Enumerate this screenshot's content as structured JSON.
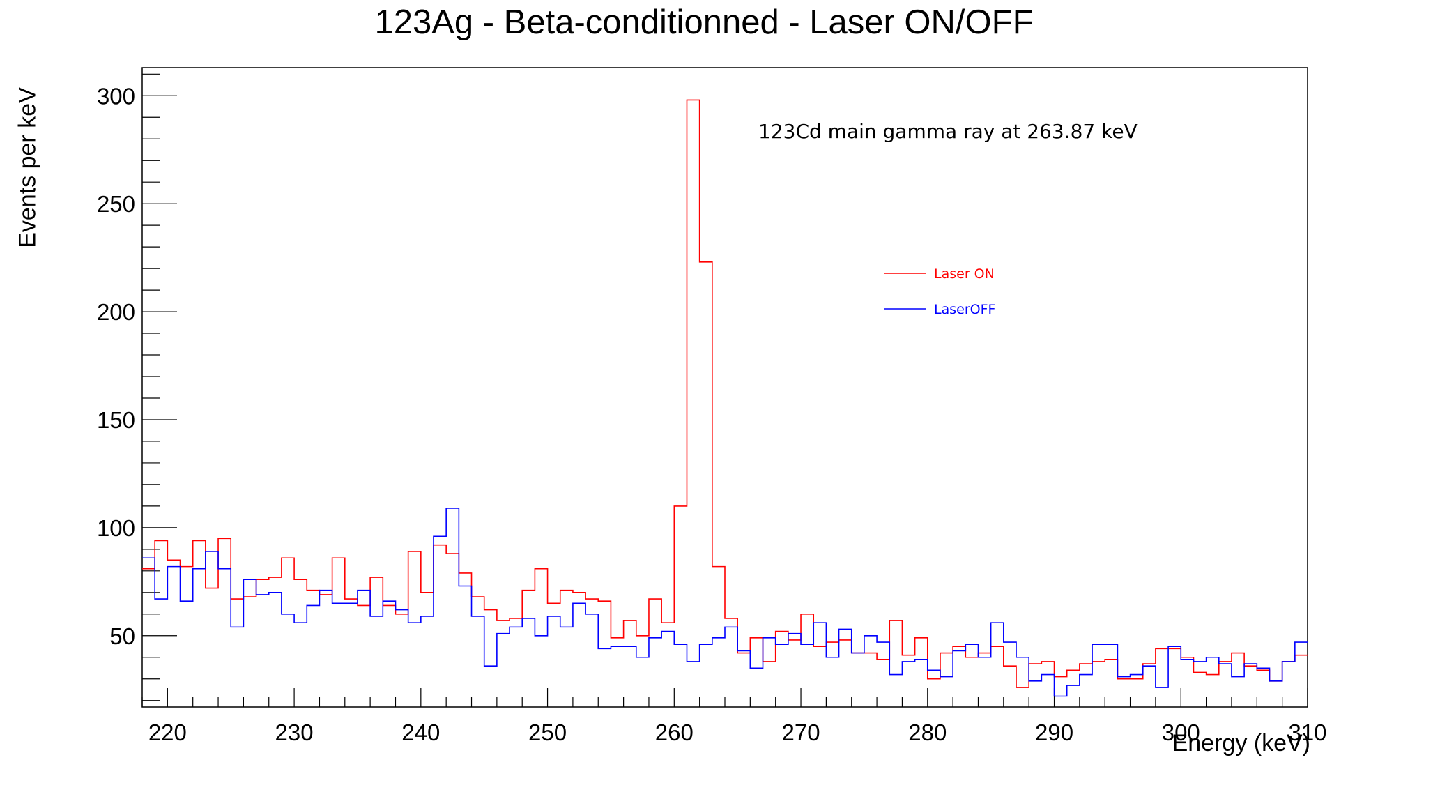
{
  "chart_data": {
    "type": "line",
    "title": "123Ag - Beta-conditionned - Laser ON/OFF",
    "xlabel": "Energy (keV)",
    "ylabel": "Events per keV",
    "xlim": [
      218,
      310
    ],
    "ylim": [
      17,
      313
    ],
    "x_ticks": [
      220,
      230,
      240,
      250,
      260,
      270,
      280,
      290,
      300,
      310
    ],
    "y_ticks": [
      50,
      100,
      150,
      200,
      250,
      300
    ],
    "bin_width": 1,
    "bin_start": 218,
    "annotation": "123Cd main gamma ray at 263.87 keV",
    "legend_position": "top-right",
    "grid": false,
    "series": [
      {
        "name": "Laser ON",
        "color": "#ff0000",
        "values": [
          81,
          94,
          85,
          82,
          94,
          72,
          95,
          67,
          68,
          76,
          77,
          86,
          76,
          71,
          69,
          86,
          67,
          64,
          77,
          64,
          60,
          89,
          70,
          92,
          88,
          79,
          68,
          62,
          57,
          58,
          71,
          81,
          65,
          71,
          70,
          67,
          66,
          49,
          57,
          50,
          67,
          56,
          110,
          298,
          223,
          82,
          58,
          42,
          49,
          38,
          52,
          48,
          60,
          45,
          47,
          48,
          42,
          42,
          39,
          57,
          41,
          49,
          30,
          42,
          45,
          40,
          42,
          45,
          36,
          26,
          37,
          38,
          31,
          34,
          37,
          38,
          39,
          30,
          30,
          37,
          44,
          44,
          40,
          33,
          32,
          38,
          42,
          36,
          34,
          29,
          38,
          41
        ]
      },
      {
        "name": "LaserOFF",
        "color": "#0000ff",
        "values": [
          86,
          67,
          82,
          66,
          81,
          89,
          81,
          54,
          76,
          69,
          70,
          60,
          56,
          64,
          71,
          65,
          65,
          71,
          59,
          66,
          62,
          56,
          59,
          96,
          109,
          73,
          59,
          36,
          51,
          54,
          58,
          50,
          59,
          54,
          65,
          60,
          44,
          45,
          45,
          40,
          49,
          52,
          46,
          38,
          46,
          49,
          54,
          43,
          35,
          49,
          46,
          51,
          46,
          56,
          40,
          53,
          42,
          50,
          47,
          32,
          38,
          39,
          34,
          31,
          43,
          46,
          40,
          56,
          47,
          40,
          29,
          32,
          22,
          27,
          32,
          46,
          46,
          31,
          32,
          36,
          26,
          45,
          39,
          38,
          40,
          37,
          31,
          37,
          35,
          29,
          38,
          47
        ]
      }
    ]
  }
}
